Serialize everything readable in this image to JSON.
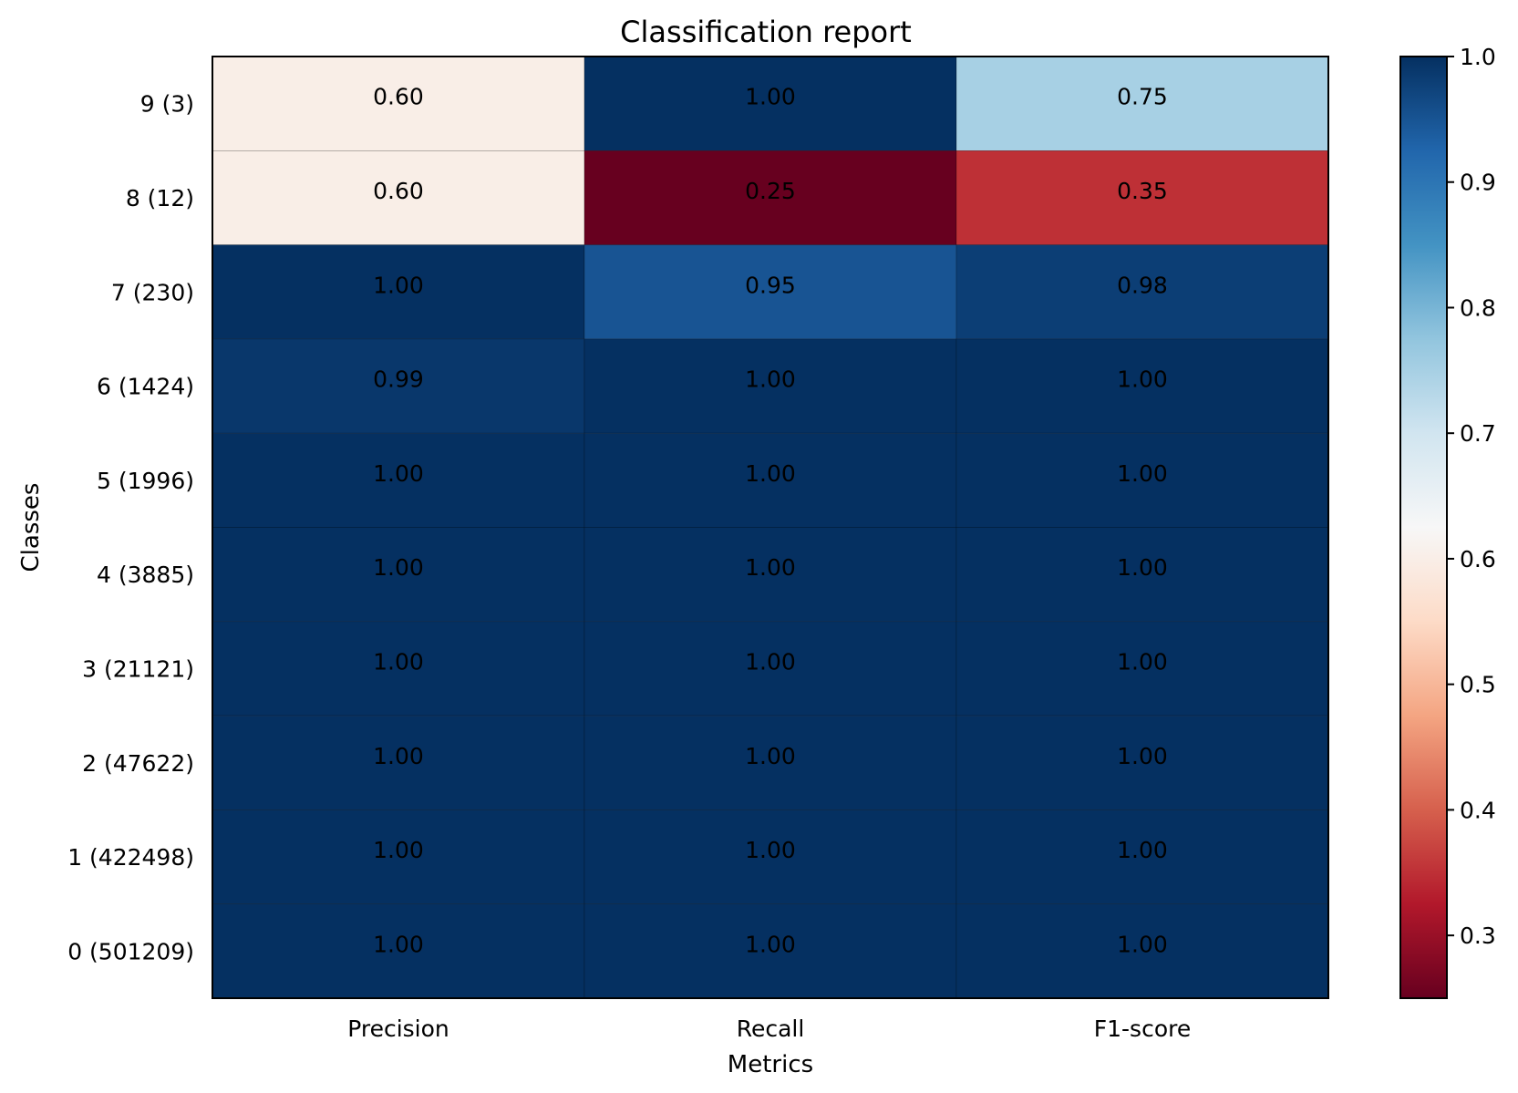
{
  "chart_data": {
    "type": "heatmap",
    "title": "Classification report",
    "xlabel": "Metrics",
    "ylabel": "Classes",
    "columns": [
      "Precision",
      "Recall",
      "F1-score"
    ],
    "rows": [
      "9 (3)",
      "8 (12)",
      "7 (230)",
      "6 (1424)",
      "5 (1996)",
      "4 (3885)",
      "3 (21121)",
      "2 (47622)",
      "1 (422498)",
      "0 (501209)"
    ],
    "values": [
      [
        0.6,
        1.0,
        0.75
      ],
      [
        0.6,
        0.25,
        0.35
      ],
      [
        1.0,
        0.95,
        0.98
      ],
      [
        0.99,
        1.0,
        1.0
      ],
      [
        1.0,
        1.0,
        1.0
      ],
      [
        1.0,
        1.0,
        1.0
      ],
      [
        1.0,
        1.0,
        1.0
      ],
      [
        1.0,
        1.0,
        1.0
      ],
      [
        1.0,
        1.0,
        1.0
      ],
      [
        1.0,
        1.0,
        1.0
      ]
    ],
    "value_labels": [
      [
        "0.60",
        "1.00",
        "0.75"
      ],
      [
        "0.60",
        "0.25",
        "0.35"
      ],
      [
        "1.00",
        "0.95",
        "0.98"
      ],
      [
        "0.99",
        "1.00",
        "1.00"
      ],
      [
        "1.00",
        "1.00",
        "1.00"
      ],
      [
        "1.00",
        "1.00",
        "1.00"
      ],
      [
        "1.00",
        "1.00",
        "1.00"
      ],
      [
        "1.00",
        "1.00",
        "1.00"
      ],
      [
        "1.00",
        "1.00",
        "1.00"
      ],
      [
        "1.00",
        "1.00",
        "1.00"
      ]
    ],
    "colormap": "RdBu",
    "vmin": 0.25,
    "vmax": 1.0,
    "colorbar": {
      "ticks": [
        0.3,
        0.4,
        0.5,
        0.6,
        0.7,
        0.8,
        0.9,
        1.0
      ],
      "tick_labels": [
        "0.3",
        "0.4",
        "0.5",
        "0.6",
        "0.7",
        "0.8",
        "0.9",
        "1.0"
      ]
    },
    "colormap_stops": [
      "#67001f",
      "#b2182b",
      "#d6604d",
      "#f4a582",
      "#fddbc7",
      "#f7f7f7",
      "#d1e5f0",
      "#92c5de",
      "#4393c3",
      "#2166ac",
      "#053061"
    ]
  }
}
